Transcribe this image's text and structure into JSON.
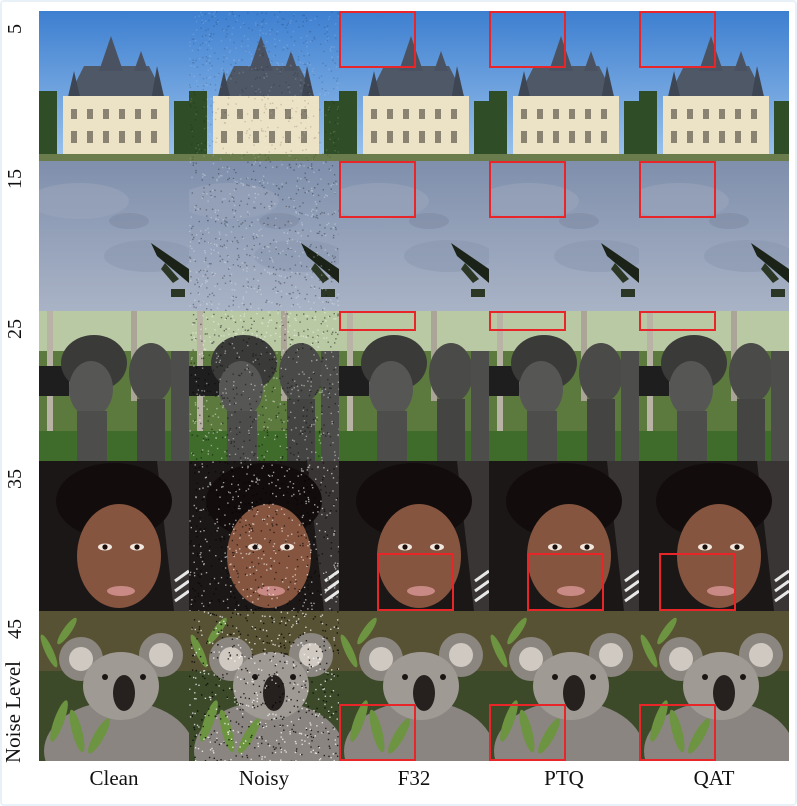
{
  "rows": [
    {
      "noise_level": "5",
      "scene": "castle"
    },
    {
      "noise_level": "15",
      "scene": "sky-plane"
    },
    {
      "noise_level": "25",
      "scene": "statues"
    },
    {
      "noise_level": "35",
      "scene": "face"
    },
    {
      "noise_level": "45",
      "scene": "koala"
    }
  ],
  "columns": [
    {
      "label": "Clean",
      "variant": "clean"
    },
    {
      "label": "Noisy",
      "variant": "noisy"
    },
    {
      "label": "F32",
      "variant": "denoised"
    },
    {
      "label": "PTQ",
      "variant": "denoised"
    },
    {
      "label": "QAT",
      "variant": "denoised"
    }
  ],
  "y_axis_title": "Noise Level",
  "highlight_color": "#e8262a"
}
